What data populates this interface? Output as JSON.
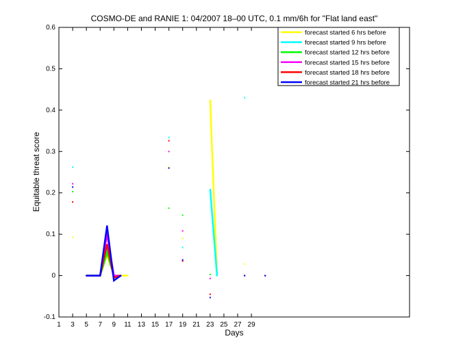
{
  "chart_data": {
    "type": "line",
    "title": "COSMO-DE and RANIE 1: 04/2007 18–00 UTC, 0.1 mm/6h for \"Flat land east\"",
    "xlabel": "Days",
    "ylabel": "Equitable threat score",
    "xlim": [
      1,
      52
    ],
    "ylim": [
      -0.1,
      0.6
    ],
    "xticks": [
      1,
      3,
      5,
      7,
      9,
      11,
      13,
      15,
      17,
      19,
      21,
      23,
      25,
      27,
      29
    ],
    "yticks": [
      -0.1,
      0,
      0.1,
      0.2,
      0.3,
      0.4,
      0.5,
      0.6
    ],
    "grid": false,
    "legend_position": "top-right",
    "series": [
      {
        "name": "forecast started 6 hrs before",
        "color": "#ffff00",
        "values": [
          [
            3,
            0.093
          ],
          [
            5,
            0
          ],
          [
            6,
            0
          ],
          [
            7,
            0
          ],
          [
            8,
            0.05
          ],
          [
            9,
            0
          ],
          [
            10,
            0
          ],
          [
            11,
            0
          ],
          [
            17,
            0.262
          ],
          [
            19,
            0.09
          ],
          [
            23,
            0.424
          ],
          [
            24,
            0
          ],
          [
            28,
            0.028
          ],
          [
            31,
            0
          ]
        ]
      },
      {
        "name": "forecast started 9 hrs before",
        "color": "#00ffff",
        "values": [
          [
            3,
            0.262
          ],
          [
            5,
            0
          ],
          [
            6,
            0
          ],
          [
            7,
            0
          ],
          [
            8,
            0.058
          ],
          [
            9,
            0
          ],
          [
            10,
            0
          ],
          [
            17,
            0.334
          ],
          [
            19,
            0.068
          ],
          [
            23,
            0.208
          ],
          [
            24,
            0
          ],
          [
            28,
            0.43
          ],
          [
            31,
            0
          ]
        ]
      },
      {
        "name": "forecast started 12 hrs before",
        "color": "#00ff00",
        "values": [
          [
            3,
            0.203
          ],
          [
            5,
            0
          ],
          [
            6,
            0
          ],
          [
            7,
            0
          ],
          [
            8,
            0.055
          ],
          [
            9,
            0
          ],
          [
            10,
            0
          ],
          [
            17,
            0.163
          ],
          [
            19,
            0.146
          ],
          [
            23,
            0.003
          ],
          [
            28,
            0
          ],
          [
            31,
            0
          ]
        ]
      },
      {
        "name": "forecast started 15 hrs before",
        "color": "#ff00ff",
        "values": [
          [
            3,
            0.222
          ],
          [
            5,
            0
          ],
          [
            6,
            0
          ],
          [
            7,
            0
          ],
          [
            8,
            0.1
          ],
          [
            9,
            0
          ],
          [
            10,
            0
          ],
          [
            17,
            0.3
          ],
          [
            19,
            0.108
          ],
          [
            23,
            -0.007
          ],
          [
            28,
            0
          ],
          [
            31,
            0
          ]
        ]
      },
      {
        "name": "forecast started 18 hrs before",
        "color": "#ff0000",
        "values": [
          [
            3,
            0.178
          ],
          [
            5,
            0
          ],
          [
            6,
            0
          ],
          [
            7,
            0
          ],
          [
            8,
            0.075
          ],
          [
            9,
            -0.005
          ],
          [
            10,
            0
          ],
          [
            17,
            0.326
          ],
          [
            19,
            0.035
          ],
          [
            23,
            -0.045
          ],
          [
            28,
            0
          ],
          [
            31,
            0
          ]
        ]
      },
      {
        "name": "forecast started 21 hrs before",
        "color": "#0000ff",
        "values": [
          [
            3,
            0.214
          ],
          [
            5,
            0
          ],
          [
            6,
            0
          ],
          [
            7,
            0
          ],
          [
            8,
            0.12
          ],
          [
            9,
            -0.012
          ],
          [
            10,
            0
          ],
          [
            17,
            0.26
          ],
          [
            19,
            0.038
          ],
          [
            23,
            -0.053
          ],
          [
            28,
            0
          ],
          [
            31,
            0
          ]
        ]
      }
    ]
  }
}
